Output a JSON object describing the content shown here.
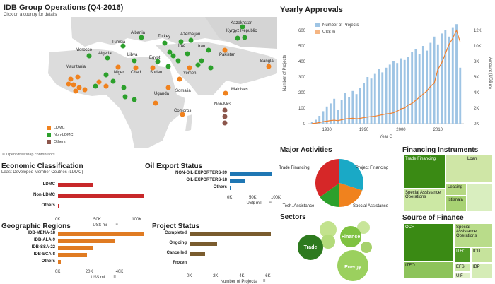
{
  "map": {
    "title": "IDB Group Operations (Q4-2016)",
    "subtitle": "Click on a country for details",
    "attribution": "© OpenStreetMap contributors",
    "countries": [
      "Kazakhstan",
      "Kyrgyz Republic",
      "Albania",
      "Turkey",
      "Azerbaijan",
      "Tunisia",
      "Morocco",
      "Algeria",
      "Libya",
      "Egypt",
      "Iraq",
      "Iran",
      "Pakistan",
      "Bangla",
      "Mauritania",
      "Niger",
      "Chad",
      "Sudan",
      "Yemen",
      "Uganda",
      "Somalia",
      "Maldives",
      "Non-Mcs",
      "Comoros"
    ],
    "legend": [
      {
        "label": "LDMC",
        "color": "#f0821e"
      },
      {
        "label": "Non-LDMC",
        "color": "#2ca02c"
      },
      {
        "label": "Others",
        "color": "#8c564b"
      }
    ]
  },
  "econ": {
    "title": "Economic Classification",
    "subtitle": "Least Developed Member Coutries (LDMC)",
    "rows": [
      {
        "label": "LDMC",
        "value": 45000
      },
      {
        "label": "Non-LDMC",
        "value": 112000
      },
      {
        "label": "Others",
        "value": 2000
      }
    ],
    "ticks": [
      "0K",
      "50K",
      "100K"
    ],
    "unit": "US$ mil",
    "color": "#c8282a"
  },
  "oil": {
    "title": "Oil Export Status",
    "rows": [
      {
        "label": "NON-OIL-EXPORTERS-39",
        "value": 95000
      },
      {
        "label": "OIL-EXPORTERS-18",
        "value": 35000
      },
      {
        "label": "Others",
        "value": 2000
      }
    ],
    "ticks": [
      "0K",
      "50K",
      "100K"
    ],
    "unit": "US$ mil",
    "color": "#1f77b4"
  },
  "geo": {
    "title": "Geographic Regions",
    "rows": [
      {
        "label": "IDB-MENA-18",
        "value": 57000
      },
      {
        "label": "IDB-ALA-9",
        "value": 38000
      },
      {
        "label": "IDB-SSA-22",
        "value": 23000
      },
      {
        "label": "IDB-ECA-8",
        "value": 19000
      },
      {
        "label": "Others",
        "value": 2000
      }
    ],
    "ticks": [
      "0K",
      "20K",
      "40K"
    ],
    "unit": "US$ mil",
    "color": "#e07b22"
  },
  "project": {
    "title": "Project Status",
    "rows": [
      {
        "label": "Completed",
        "value": 6200
      },
      {
        "label": "Ongoing",
        "value": 2100
      },
      {
        "label": "Cancelled",
        "value": 1200
      },
      {
        "label": "Frozen",
        "value": 50
      }
    ],
    "ticks": [
      "0K",
      "2K",
      "4K",
      "6K"
    ],
    "unit": "Number of Projects",
    "color": "#7a5c2e"
  },
  "yearly": {
    "title": "Yearly Approvals",
    "legend": [
      {
        "label": "Number of Projects",
        "color": "#9ec4e4"
      },
      {
        "label": "US$ m",
        "color": "#f5b582"
      }
    ],
    "ylabel_left": "Number of Projects",
    "ylabel_right": "Amount (US$ m)",
    "xlabel": "Year G",
    "left_ticks": [
      "0",
      "100",
      "200",
      "300",
      "400",
      "500",
      "600"
    ],
    "right_ticks": [
      "0K",
      "2K",
      "4K",
      "6K",
      "8K",
      "10K",
      "12K"
    ],
    "x_ticks": [
      "1980",
      "1990",
      "2000",
      "2010"
    ]
  },
  "chart_data": {
    "type": "bar",
    "title": "Yearly Approvals",
    "xlabel": "Year G",
    "ylabel": "Number of Projects",
    "ylim": [
      0,
      650
    ],
    "y2lim": [
      0,
      13000
    ],
    "x": [
      1976,
      1977,
      1978,
      1979,
      1980,
      1981,
      1982,
      1983,
      1984,
      1985,
      1986,
      1987,
      1988,
      1989,
      1990,
      1991,
      1992,
      1993,
      1994,
      1995,
      1996,
      1997,
      1998,
      1999,
      2000,
      2001,
      2002,
      2003,
      2004,
      2005,
      2006,
      2007,
      2008,
      2009,
      2010,
      2011,
      2012,
      2013,
      2014,
      2015,
      2016
    ],
    "series": [
      {
        "name": "Number of Projects",
        "kind": "bar",
        "values": [
          10,
          25,
          50,
          80,
          110,
          130,
          160,
          90,
          150,
          200,
          170,
          210,
          190,
          230,
          260,
          300,
          290,
          320,
          350,
          330,
          360,
          380,
          400,
          390,
          420,
          410,
          430,
          460,
          480,
          450,
          500,
          470,
          520,
          560,
          510,
          580,
          600,
          560,
          620,
          640,
          360
        ]
      },
      {
        "name": "US$ m",
        "kind": "line",
        "axis": "right",
        "values": [
          20,
          60,
          150,
          250,
          320,
          400,
          450,
          380,
          500,
          600,
          650,
          700,
          620,
          680,
          780,
          850,
          900,
          950,
          1050,
          1150,
          1250,
          1300,
          1400,
          1600,
          1900,
          2000,
          2400,
          2600,
          3000,
          3400,
          3800,
          4200,
          4800,
          5200,
          7000,
          7800,
          9000,
          10200,
          11000,
          12000,
          10500
        ]
      }
    ]
  },
  "activities": {
    "title": "Major Activities",
    "slices": [
      {
        "label": "Project Financing",
        "value": 30,
        "color": "#1aa9c6"
      },
      {
        "label": "Special Assistance",
        "value": 20,
        "color": "#f0821e"
      },
      {
        "label": "Tech. Assistance",
        "value": 15,
        "color": "#2ca02c"
      },
      {
        "label": "Trade Financing",
        "value": 35,
        "color": "#d62728"
      }
    ]
  },
  "sectors": {
    "title": "Sectors",
    "bubbles": [
      {
        "label": "Trade",
        "color": "#2d7a1e"
      },
      {
        "label": "Finance",
        "color": "#7fc241"
      },
      {
        "label": "Energy",
        "color": "#9bd05e"
      },
      {
        "label": "",
        "color": "#b3db7a"
      },
      {
        "label": "",
        "color": "#c2e28d"
      },
      {
        "label": "",
        "color": "#a6d16b"
      },
      {
        "label": "",
        "color": "#c8e59a"
      }
    ]
  },
  "fin_instruments": {
    "title": "Financing Instruments",
    "cells": [
      {
        "label": "Trade Financing",
        "color": "#3a8a14"
      },
      {
        "label": "Loan",
        "color": "#cfe6a6"
      },
      {
        "label": "Leasing",
        "color": "#b5d882"
      },
      {
        "label": "Special Assistance Operations",
        "color": "#cce8a4"
      },
      {
        "label": "Istisna'a",
        "color": "#a8d273"
      },
      {
        "label": "",
        "color": "#d9eebf"
      }
    ]
  },
  "fin_source": {
    "title": "Source of Finance",
    "cells": [
      {
        "label": "OCR",
        "color": "#3a8a14"
      },
      {
        "label": "Special Assistance Operations",
        "color": "#b9dc8a"
      },
      {
        "label": "ITFC",
        "color": "#4f9a24"
      },
      {
        "label": "ICD",
        "color": "#c6e39c"
      },
      {
        "label": "ITFO",
        "color": "#8dc35b"
      },
      {
        "label": "EFS",
        "color": "#cde8a9"
      },
      {
        "label": "IBP",
        "color": "#d5ecb6"
      },
      {
        "label": "UIF",
        "color": "#e0f0c8"
      }
    ]
  }
}
